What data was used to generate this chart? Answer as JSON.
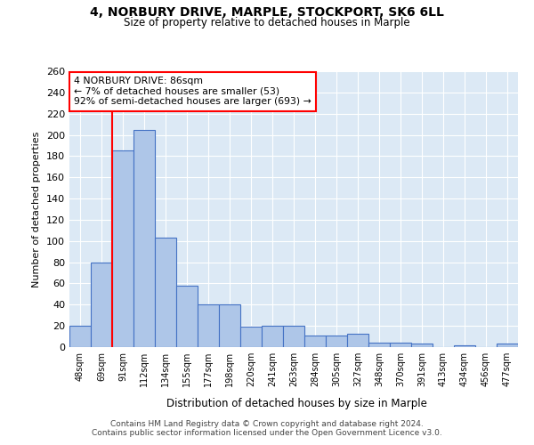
{
  "title1": "4, NORBURY DRIVE, MARPLE, STOCKPORT, SK6 6LL",
  "title2": "Size of property relative to detached houses in Marple",
  "xlabel": "Distribution of detached houses by size in Marple",
  "ylabel": "Number of detached properties",
  "categories": [
    "48sqm",
    "69sqm",
    "91sqm",
    "112sqm",
    "134sqm",
    "155sqm",
    "177sqm",
    "198sqm",
    "220sqm",
    "241sqm",
    "263sqm",
    "284sqm",
    "305sqm",
    "327sqm",
    "348sqm",
    "370sqm",
    "391sqm",
    "413sqm",
    "434sqm",
    "456sqm",
    "477sqm"
  ],
  "values": [
    20,
    80,
    185,
    205,
    103,
    58,
    40,
    40,
    19,
    20,
    20,
    11,
    11,
    13,
    4,
    4,
    3,
    0,
    2,
    0,
    3
  ],
  "bar_color": "#aec6e8",
  "bar_edge_color": "#4472c4",
  "bg_color": "#dce9f5",
  "grid_color": "#ffffff",
  "red_line_x": 1.5,
  "annotation_text": "4 NORBURY DRIVE: 86sqm\n← 7% of detached houses are smaller (53)\n92% of semi-detached houses are larger (693) →",
  "ylim": [
    0,
    260
  ],
  "yticks": [
    0,
    20,
    40,
    60,
    80,
    100,
    120,
    140,
    160,
    180,
    200,
    220,
    240,
    260
  ],
  "footer1": "Contains HM Land Registry data © Crown copyright and database right 2024.",
  "footer2": "Contains public sector information licensed under the Open Government Licence v3.0."
}
